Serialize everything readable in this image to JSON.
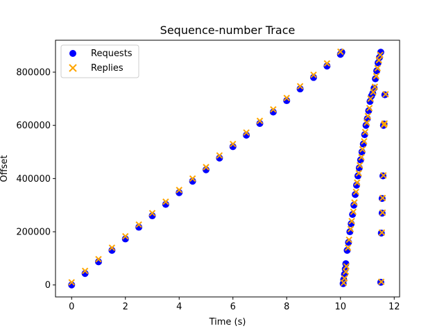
{
  "chart_data": {
    "type": "scatter",
    "title": "Sequence-number Trace",
    "xlabel": "Time (s)",
    "ylabel": "Offset",
    "xlim": [
      -0.6,
      12.2
    ],
    "ylim": [
      -45000,
      920000
    ],
    "xticks": [
      0,
      2,
      4,
      6,
      8,
      10,
      12
    ],
    "yticks": [
      0,
      200000,
      400000,
      600000,
      800000
    ],
    "grid": false,
    "legend": "top-left",
    "series": [
      {
        "name": "Requests",
        "marker": "circle",
        "color": "#0000ff",
        "points": [
          {
            "x": 0.0,
            "y": 0
          },
          {
            "x": 0.5,
            "y": 43000
          },
          {
            "x": 1.0,
            "y": 87000
          },
          {
            "x": 1.5,
            "y": 130000
          },
          {
            "x": 2.0,
            "y": 173000
          },
          {
            "x": 2.5,
            "y": 217000
          },
          {
            "x": 3.0,
            "y": 260000
          },
          {
            "x": 3.5,
            "y": 303000
          },
          {
            "x": 4.0,
            "y": 347000
          },
          {
            "x": 4.5,
            "y": 390000
          },
          {
            "x": 5.0,
            "y": 433000
          },
          {
            "x": 5.5,
            "y": 477000
          },
          {
            "x": 6.0,
            "y": 520000
          },
          {
            "x": 6.5,
            "y": 563000
          },
          {
            "x": 7.0,
            "y": 607000
          },
          {
            "x": 7.5,
            "y": 650000
          },
          {
            "x": 8.0,
            "y": 693000
          },
          {
            "x": 8.5,
            "y": 737000
          },
          {
            "x": 9.0,
            "y": 780000
          },
          {
            "x": 9.5,
            "y": 823000
          },
          {
            "x": 10.0,
            "y": 867000
          },
          {
            "x": 10.05,
            "y": 875000
          },
          {
            "x": 10.1,
            "y": 5000
          },
          {
            "x": 10.12,
            "y": 20000
          },
          {
            "x": 10.15,
            "y": 40000
          },
          {
            "x": 10.18,
            "y": 60000
          },
          {
            "x": 10.2,
            "y": 80000
          },
          {
            "x": 10.25,
            "y": 130000
          },
          {
            "x": 10.3,
            "y": 160000
          },
          {
            "x": 10.35,
            "y": 200000
          },
          {
            "x": 10.4,
            "y": 230000
          },
          {
            "x": 10.45,
            "y": 265000
          },
          {
            "x": 10.5,
            "y": 300000
          },
          {
            "x": 10.55,
            "y": 340000
          },
          {
            "x": 10.6,
            "y": 375000
          },
          {
            "x": 10.65,
            "y": 410000
          },
          {
            "x": 10.7,
            "y": 440000
          },
          {
            "x": 10.75,
            "y": 470000
          },
          {
            "x": 10.8,
            "y": 500000
          },
          {
            "x": 10.85,
            "y": 530000
          },
          {
            "x": 10.9,
            "y": 565000
          },
          {
            "x": 10.95,
            "y": 600000
          },
          {
            "x": 11.0,
            "y": 625000
          },
          {
            "x": 11.05,
            "y": 655000
          },
          {
            "x": 11.1,
            "y": 690000
          },
          {
            "x": 11.15,
            "y": 710000
          },
          {
            "x": 11.2,
            "y": 720000
          },
          {
            "x": 11.25,
            "y": 740000
          },
          {
            "x": 11.3,
            "y": 775000
          },
          {
            "x": 11.35,
            "y": 805000
          },
          {
            "x": 11.4,
            "y": 835000
          },
          {
            "x": 11.45,
            "y": 855000
          },
          {
            "x": 11.5,
            "y": 875000
          },
          {
            "x": 11.5,
            "y": 10000
          },
          {
            "x": 11.52,
            "y": 195000
          },
          {
            "x": 11.55,
            "y": 270000
          },
          {
            "x": 11.55,
            "y": 325000
          },
          {
            "x": 11.58,
            "y": 410000
          },
          {
            "x": 11.6,
            "y": 600000
          },
          {
            "x": 11.62,
            "y": 605000
          },
          {
            "x": 11.65,
            "y": 715000
          }
        ]
      },
      {
        "name": "Replies",
        "marker": "x",
        "color": "#ffa500",
        "points": [
          {
            "x": 0.0,
            "y": 10000
          },
          {
            "x": 0.5,
            "y": 53000
          },
          {
            "x": 1.0,
            "y": 97000
          },
          {
            "x": 1.5,
            "y": 140000
          },
          {
            "x": 2.0,
            "y": 183000
          },
          {
            "x": 2.5,
            "y": 227000
          },
          {
            "x": 3.0,
            "y": 270000
          },
          {
            "x": 3.5,
            "y": 313000
          },
          {
            "x": 4.0,
            "y": 357000
          },
          {
            "x": 4.5,
            "y": 400000
          },
          {
            "x": 5.0,
            "y": 443000
          },
          {
            "x": 5.5,
            "y": 487000
          },
          {
            "x": 6.0,
            "y": 530000
          },
          {
            "x": 6.5,
            "y": 573000
          },
          {
            "x": 7.0,
            "y": 617000
          },
          {
            "x": 7.5,
            "y": 660000
          },
          {
            "x": 8.0,
            "y": 703000
          },
          {
            "x": 8.5,
            "y": 747000
          },
          {
            "x": 9.0,
            "y": 790000
          },
          {
            "x": 9.5,
            "y": 833000
          },
          {
            "x": 10.0,
            "y": 877000
          },
          {
            "x": 10.12,
            "y": 8000
          },
          {
            "x": 10.15,
            "y": 25000
          },
          {
            "x": 10.2,
            "y": 50000
          },
          {
            "x": 10.22,
            "y": 70000
          },
          {
            "x": 10.28,
            "y": 140000
          },
          {
            "x": 10.32,
            "y": 170000
          },
          {
            "x": 10.38,
            "y": 210000
          },
          {
            "x": 10.42,
            "y": 240000
          },
          {
            "x": 10.48,
            "y": 275000
          },
          {
            "x": 10.52,
            "y": 310000
          },
          {
            "x": 10.58,
            "y": 350000
          },
          {
            "x": 10.62,
            "y": 385000
          },
          {
            "x": 10.68,
            "y": 420000
          },
          {
            "x": 10.72,
            "y": 450000
          },
          {
            "x": 10.78,
            "y": 480000
          },
          {
            "x": 10.82,
            "y": 510000
          },
          {
            "x": 10.88,
            "y": 540000
          },
          {
            "x": 10.92,
            "y": 575000
          },
          {
            "x": 10.98,
            "y": 610000
          },
          {
            "x": 11.02,
            "y": 635000
          },
          {
            "x": 11.08,
            "y": 665000
          },
          {
            "x": 11.12,
            "y": 700000
          },
          {
            "x": 11.22,
            "y": 725000
          },
          {
            "x": 11.28,
            "y": 745000
          },
          {
            "x": 11.33,
            "y": 785000
          },
          {
            "x": 11.38,
            "y": 815000
          },
          {
            "x": 11.43,
            "y": 845000
          },
          {
            "x": 11.48,
            "y": 865000
          },
          {
            "x": 11.52,
            "y": 12000
          },
          {
            "x": 11.54,
            "y": 197000
          },
          {
            "x": 11.57,
            "y": 272000
          },
          {
            "x": 11.57,
            "y": 327000
          },
          {
            "x": 11.6,
            "y": 412000
          },
          {
            "x": 11.62,
            "y": 602000
          },
          {
            "x": 11.64,
            "y": 607000
          },
          {
            "x": 11.68,
            "y": 717000
          }
        ]
      }
    ]
  }
}
